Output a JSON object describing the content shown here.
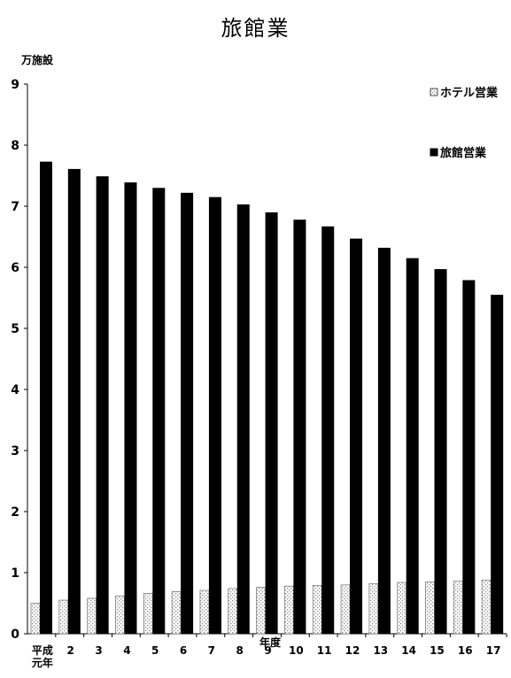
{
  "colors": {
    "series_hotel": "#e4e4e4",
    "series_ryokan": "#000000",
    "axis": "#000000"
  },
  "chart_data": {
    "type": "bar",
    "title": "旅館業",
    "ylabel": "万施設",
    "xlabel": "年度",
    "ylim": [
      0,
      9
    ],
    "yticks": [
      "0",
      "1",
      "2",
      "3",
      "4",
      "5",
      "6",
      "7",
      "8",
      "9"
    ],
    "categories": [
      "平成元年",
      "2",
      "3",
      "4",
      "5",
      "6",
      "7",
      "8",
      "9",
      "10",
      "11",
      "12",
      "13",
      "14",
      "15",
      "16",
      "17"
    ],
    "category_labels": [
      [
        "平成",
        "元年"
      ],
      [
        "2"
      ],
      [
        "3"
      ],
      [
        "4"
      ],
      [
        "5"
      ],
      [
        "6"
      ],
      [
        "7"
      ],
      [
        "8"
      ],
      [
        "9"
      ],
      [
        "10"
      ],
      [
        "11"
      ],
      [
        "12"
      ],
      [
        "13"
      ],
      [
        "14"
      ],
      [
        "15"
      ],
      [
        "16"
      ],
      [
        "17"
      ]
    ],
    "series": [
      {
        "name": "ホテル営業",
        "color": "#e4e4e4",
        "values": [
          0.5,
          0.55,
          0.58,
          0.62,
          0.66,
          0.69,
          0.71,
          0.74,
          0.76,
          0.78,
          0.79,
          0.8,
          0.82,
          0.84,
          0.85,
          0.86,
          0.88
        ]
      },
      {
        "name": "旅館営業",
        "color": "#000000",
        "values": [
          7.73,
          7.61,
          7.49,
          7.39,
          7.3,
          7.22,
          7.15,
          7.03,
          6.9,
          6.78,
          6.67,
          6.47,
          6.32,
          6.15,
          5.97,
          5.79,
          5.55
        ]
      }
    ],
    "legend_position": "top-right",
    "grid": false
  }
}
